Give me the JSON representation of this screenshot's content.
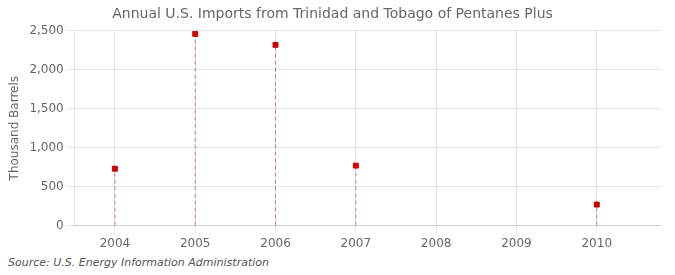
{
  "chart_data": {
    "type": "scatter",
    "title": "Annual U.S. Imports from Trinidad and Tobago of Pentanes Plus",
    "y_label": "Thousand Barrels",
    "source": "Source: U.S. Energy Information Administration",
    "x": [
      2004,
      2005,
      2006,
      2007,
      2010
    ],
    "values": [
      730,
      2460,
      2320,
      770,
      270
    ],
    "color": "#cc0000",
    "marker": "square",
    "xlim": [
      2003.5,
      2010.8
    ],
    "xticks": [
      2004,
      2005,
      2006,
      2007,
      2008,
      2009,
      2010
    ],
    "ylim": [
      0,
      2500
    ],
    "yticks": [
      0,
      500,
      {
        "value": 1000,
        "label": "1,000"
      },
      {
        "value": 1500,
        "label": "1,500"
      },
      {
        "value": 2000,
        "label": "2,000"
      },
      {
        "value": 2500,
        "label": "2,500"
      }
    ],
    "grid": true
  }
}
